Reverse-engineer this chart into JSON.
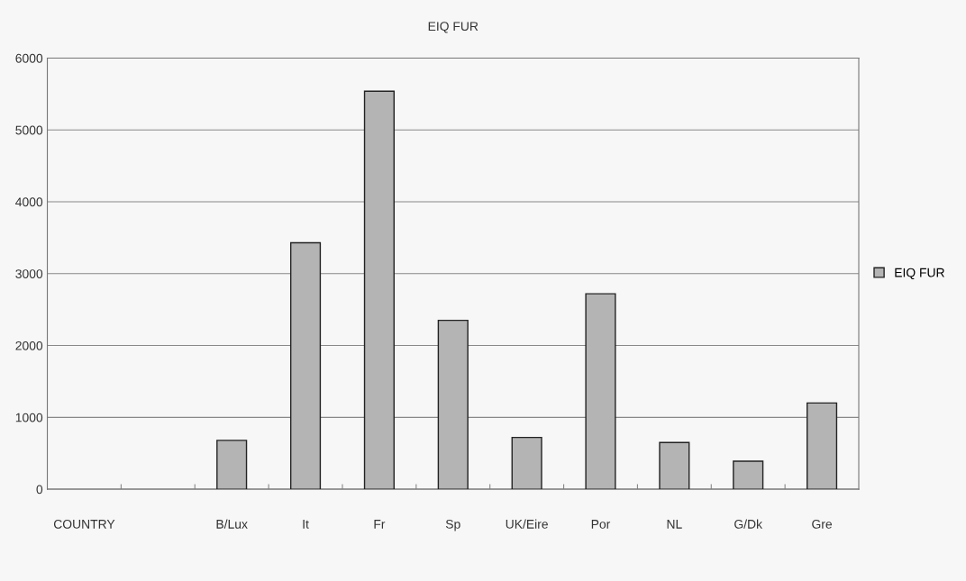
{
  "chart_data": {
    "type": "bar",
    "title": "EIQ FUR",
    "categories": [
      "COUNTRY",
      null,
      "B/Lux",
      "It",
      "Fr",
      "Sp",
      "UK/Eire",
      "Por",
      "NL",
      "G/Dk",
      "Gre"
    ],
    "series": [
      {
        "name": "EIQ FUR",
        "color": "#b4b4b4",
        "values": [
          null,
          null,
          680,
          3430,
          5540,
          2350,
          720,
          2720,
          650,
          390,
          1200
        ]
      }
    ],
    "ylim": [
      0,
      6000
    ],
    "yticks": [
      0,
      1000,
      2000,
      3000,
      4000,
      5000,
      6000
    ],
    "grid": "y",
    "legend": "right"
  }
}
